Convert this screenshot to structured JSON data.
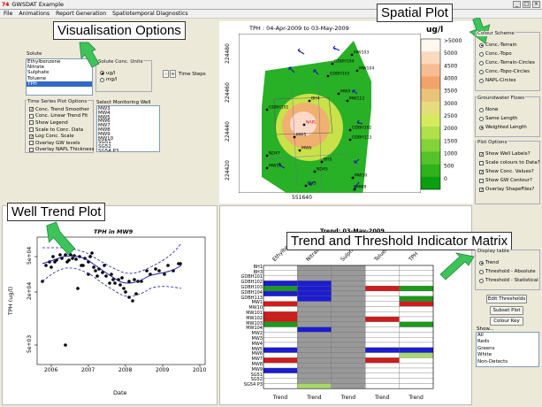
{
  "window": {
    "title": "GWSDAT Example"
  },
  "menu": [
    "File",
    "Animations",
    "Report Generation",
    "Spatiotemporal Diagnostics"
  ],
  "callouts": {
    "visualisation": "Visualisation Options",
    "spatial": "Spatial Plot",
    "well_trend": "Well Trend Plot",
    "trend_matrix": "Trend and Threshold Indicator Matrix"
  },
  "solute": {
    "title": "Solute",
    "items": [
      "Ethylbenzene",
      "Nitrate",
      "Sulphate",
      "Toluene",
      "TPH"
    ],
    "selected": "TPH"
  },
  "solute_units": {
    "title": "Solute Conc. Units",
    "options": [
      "ug/l",
      "mg/l"
    ],
    "selected": "ug/l"
  },
  "time_steps": {
    "minus": "-",
    "plus": "+",
    "label": "Time Steps"
  },
  "ts_options": {
    "title": "Time Series Plot Options",
    "items": [
      {
        "label": "Conc. Trend Smoother",
        "checked": true
      },
      {
        "label": "Conc. Linear Trend Fit",
        "checked": false
      },
      {
        "label": "Show Legend",
        "checked": false
      },
      {
        "label": "Scale to Conc. Data",
        "checked": false
      },
      {
        "label": "Log Conc. Scale",
        "checked": true
      },
      {
        "label": "Overlay GW levels",
        "checked": false
      },
      {
        "label": "Overlay NAPL Thickness",
        "checked": false
      }
    ]
  },
  "monitoring_well": {
    "title": "Select Monitoring Well",
    "items": [
      "MW3",
      "MW4",
      "MW5",
      "MW6",
      "MW7",
      "MW8",
      "MW9",
      "MW10",
      "SG51",
      "SG52",
      "SG54 P3"
    ]
  },
  "spatial": {
    "title": "TPH : 04-Apr-2009 to 03-May-2009",
    "unit": "ug/l",
    "yticks": [
      "224480",
      "224460",
      "224440",
      "224420"
    ],
    "xtick": "551640",
    "legend": [
      ">5000",
      "5000",
      "4500",
      "4000",
      "3500",
      "3000",
      "2500",
      "2000",
      "1500",
      "1000",
      "500",
      "0"
    ],
    "legend_colors": [
      "#fff7f0",
      "#fbd9bf",
      "#f6bc94",
      "#f0a46c",
      "#e9c37a",
      "#e6dc7d",
      "#d6ea5e",
      "#b0e04a",
      "#82d23a",
      "#56c22a",
      "#2fb21c",
      "#0a9e10"
    ],
    "wells": [
      {
        "n": "MW103",
        "x": 398,
        "y": 62
      },
      {
        "n": "GDBH104",
        "x": 376,
        "y": 72
      },
      {
        "n": "GDBH103",
        "x": 371,
        "y": 86
      },
      {
        "n": "MW104",
        "x": 404,
        "y": 80
      },
      {
        "n": "MW9",
        "x": 383,
        "y": 106
      },
      {
        "n": "MW112",
        "x": 393,
        "y": 114
      },
      {
        "n": "BH4",
        "x": 350,
        "y": 114
      },
      {
        "n": "GDBH101",
        "x": 302,
        "y": 124
      },
      {
        "n": "NAPL",
        "x": 344,
        "y": 141
      },
      {
        "n": "MW5",
        "x": 333,
        "y": 155
      },
      {
        "n": "MW6",
        "x": 339,
        "y": 170
      },
      {
        "n": "ND47",
        "x": 302,
        "y": 176
      },
      {
        "n": "MW10",
        "x": 302,
        "y": 190
      },
      {
        "n": "GDBH102",
        "x": 396,
        "y": 147
      },
      {
        "n": "GDBH113",
        "x": 396,
        "y": 158
      },
      {
        "n": "BH5",
        "x": 364,
        "y": 183
      },
      {
        "n": "ND45",
        "x": 356,
        "y": 194
      },
      {
        "n": "BH3",
        "x": 346,
        "y": 210
      },
      {
        "n": "MW8",
        "x": 401,
        "y": 214
      },
      {
        "n": "MW10",
        "x": 399,
        "y": 201
      }
    ],
    "colour_scheme": {
      "title": "Colour Scheme",
      "options": [
        "Conc.-Terrain",
        "Conc.-Topo",
        "Conc.-Terrain-Circles",
        "Conc.-Topo-Circles",
        "NAPL-Circles"
      ],
      "selected": "Conc.-Terrain"
    },
    "gw_flows": {
      "title": "Groundwater Flows",
      "options": [
        "None",
        "Same Length",
        "Weighted Length"
      ],
      "selected": "Weighted Length"
    },
    "plot_options": {
      "title": "Plot Options",
      "items": [
        {
          "label": "Show Well Labels?",
          "checked": true
        },
        {
          "label": "Scale colours to Data?",
          "checked": false
        },
        {
          "label": "Show Conc. Values?",
          "checked": true
        },
        {
          "label": "Show GW Contour?",
          "checked": false
        },
        {
          "label": "Overlay ShapeFiles?",
          "checked": true
        }
      ]
    }
  },
  "well_trend": {
    "title": "TPH in MW9",
    "ylabel": "TPH (ug/l)",
    "xlabel": "Date",
    "yticks": [
      "5e+04",
      "2e+04",
      "5e+03"
    ],
    "xticks": [
      "2006",
      "2007",
      "2008",
      "2009",
      "2010"
    ]
  },
  "matrix": {
    "title": "Trend: 03-May-2009",
    "columns": [
      "Ethylbenzene",
      "Nitrate",
      "Sulphate",
      "Toluene",
      "TPH"
    ],
    "rows": [
      "BH1",
      "BH3",
      "GDBH101",
      "GDBH102",
      "GDBH103",
      "GDBH104",
      "GDBH113",
      "MW1",
      "MW10",
      "MW101",
      "MW102",
      "MW103",
      "MW104",
      "MW2",
      "MW3",
      "MW4",
      "MW5",
      "MW6",
      "MW7",
      "MW8",
      "MW9",
      "SG51",
      "SG52",
      "SG54 P3"
    ],
    "footer": [
      "Trend",
      "Trend",
      "Trend",
      "Trend",
      "Trend"
    ],
    "colors": {
      "W": "#ffffff",
      "G": "#999999",
      "B": "#1c1cd0",
      "R": "#d01c1c",
      "N": "#1c9a1c",
      "L": "#a8d86a"
    },
    "cells": [
      "WGGWW",
      "WGGWW",
      "WGGWW",
      "BBGWW",
      "NBGRN",
      "BBGWW",
      "WBGWN",
      "RGGWR",
      "WGGWW",
      "RGGWW",
      "RGGRW",
      "NGGWN",
      "WBGWW",
      "WGGWW",
      "WGGWW",
      "WGGWW",
      "BGGBB",
      "WGGWL",
      "RGGRW",
      "WGGWW",
      "BGGWW",
      "WGGWW",
      "WGGWW",
      "WLGWW"
    ],
    "display_table": {
      "title": "Display table",
      "options": [
        "Trend",
        "Threshold - Absolute",
        "Threshold - Statistical"
      ],
      "selected": "Trend"
    },
    "buttons": [
      "Edit Thresholds",
      "Subset Plot",
      "Colour Key"
    ],
    "show": {
      "title": "Show...",
      "items": [
        "All",
        "Reds",
        "Greens",
        "White",
        "Non-Detects"
      ]
    }
  }
}
